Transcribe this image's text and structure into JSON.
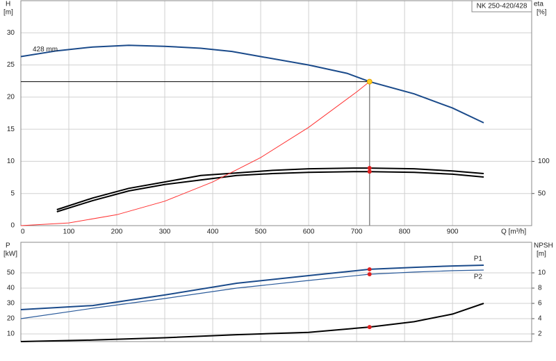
{
  "chart_data": [
    {
      "type": "line",
      "title": "NK 250-420/428",
      "ylabel": "H",
      "yunit": "[m]",
      "y2label": "eta",
      "y2unit": "[%]",
      "xlabel": "Q [m³/h]",
      "xlim": [
        0,
        1065
      ],
      "xticks": [
        0,
        100,
        200,
        300,
        400,
        500,
        600,
        700,
        800,
        900
      ],
      "show_xtick_labels": true,
      "ylim": [
        0,
        35
      ],
      "yticks": [
        0,
        5,
        10,
        15,
        20,
        25,
        30
      ],
      "y2lim": [
        0,
        350
      ],
      "y2ticks": [
        50,
        100
      ],
      "grid": true,
      "series_label_position": "start",
      "operating_point": {
        "x": 727,
        "y": 22.4
      },
      "series": [
        {
          "name": "428 mm",
          "color": "#1a4a8a",
          "axis": "y",
          "x": [
            0,
            75,
            150,
            225,
            300,
            375,
            440,
            500,
            600,
            680,
            727,
            820,
            900,
            965
          ],
          "values": [
            26.3,
            27.2,
            27.8,
            28.05,
            27.9,
            27.6,
            27.1,
            26.3,
            25.0,
            23.7,
            22.4,
            20.5,
            18.3,
            16.0
          ]
        },
        {
          "color": "#000000",
          "axis": "y2",
          "x": [
            75,
            150,
            225,
            300,
            375,
            450,
            525,
            600,
            700,
            727,
            820,
            900,
            965
          ],
          "values": [
            24.8,
            43,
            58,
            68,
            78,
            82,
            86,
            88.5,
            89.6,
            89.6,
            88.5,
            85,
            81
          ]
        },
        {
          "color": "#000000",
          "axis": "y2",
          "x": [
            75,
            150,
            225,
            300,
            375,
            450,
            525,
            600,
            700,
            727,
            820,
            900,
            965
          ],
          "values": [
            21.6,
            39,
            54,
            64,
            71,
            78,
            81,
            83,
            84,
            84,
            83,
            80,
            75.6
          ]
        },
        {
          "color": "#ff3030",
          "axis": "y",
          "x": [
            0,
            100,
            200,
            300,
            400,
            500,
            600,
            700,
            727
          ],
          "values": [
            0,
            0.42,
            1.7,
            3.8,
            6.8,
            10.6,
            15.3,
            20.8,
            22.4
          ]
        }
      ]
    },
    {
      "type": "line",
      "ylabel": "P",
      "yunit": "[kW]",
      "y2label": "NPSH",
      "y2unit": "[m]",
      "xlim": [
        0,
        1065
      ],
      "xticks": [
        0,
        100,
        200,
        300,
        400,
        500,
        600,
        700,
        800,
        900
      ],
      "show_xtick_labels": false,
      "ylim": [
        5,
        70
      ],
      "yticks": [
        10,
        20,
        30,
        40,
        50
      ],
      "y2lim": [
        1,
        14
      ],
      "y2ticks": [
        2,
        4,
        6,
        8,
        10
      ],
      "grid": true,
      "series_label_position": "end",
      "operating_point": {
        "x": 727
      },
      "series": [
        {
          "name": "P1",
          "color": "#1a4a8a",
          "axis": "y",
          "x": [
            0,
            150,
            300,
            450,
            600,
            727,
            820,
            900,
            965
          ],
          "values": [
            25.9,
            28.6,
            35.5,
            43.2,
            48.2,
            52.3,
            53.6,
            54.5,
            55
          ]
        },
        {
          "name": "P2",
          "color": "#2a5a9a",
          "axis": "y",
          "x": [
            0,
            150,
            300,
            450,
            600,
            727,
            820,
            900,
            965
          ],
          "values": [
            20,
            26.8,
            33.2,
            40,
            45,
            49.1,
            50.5,
            51.4,
            51.8
          ]
        },
        {
          "color": "#000000",
          "axis": "y2",
          "x": [
            0,
            75,
            150,
            300,
            450,
            600,
            727,
            820,
            900,
            965
          ],
          "values": [
            1,
            1.1,
            1.2,
            1.5,
            1.9,
            2.2,
            2.9,
            3.6,
            4.6,
            6.0
          ]
        }
      ]
    }
  ]
}
